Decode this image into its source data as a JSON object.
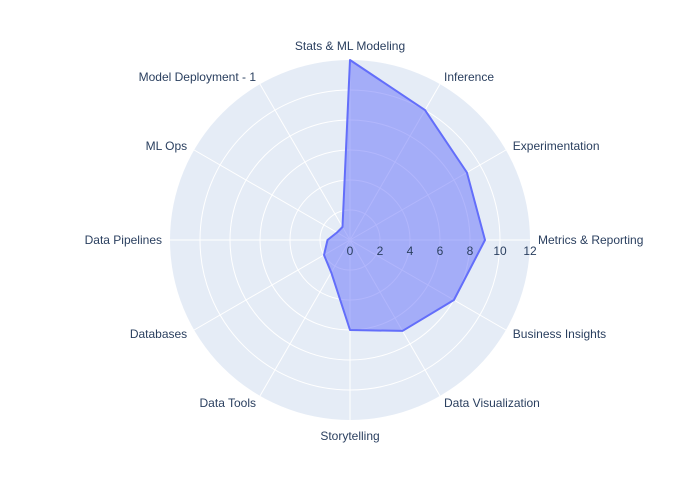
{
  "chart_data": {
    "type": "radar",
    "categories": [
      "Metrics & Reporting",
      "Experimentation",
      "Inference",
      "Stats & ML Modeling",
      "Model Deployment - 1",
      "ML Ops",
      "Data Pipelines",
      "Databases",
      "Data Tools",
      "Storytelling",
      "Data Visualization",
      "Business Insights"
    ],
    "values": [
      9,
      9,
      10,
      12,
      1,
      1,
      1.5,
      2,
      2.5,
      6,
      7,
      8
    ],
    "radial_range": [
      0,
      12
    ],
    "radial_ticks": [
      0,
      2,
      4,
      6,
      8,
      10,
      12
    ],
    "fill_color": "#636efa",
    "polar_bg_color": "#e5ecf6",
    "grid_color": "#ffffff",
    "text_color": "#2a3f5f",
    "grid": true
  }
}
